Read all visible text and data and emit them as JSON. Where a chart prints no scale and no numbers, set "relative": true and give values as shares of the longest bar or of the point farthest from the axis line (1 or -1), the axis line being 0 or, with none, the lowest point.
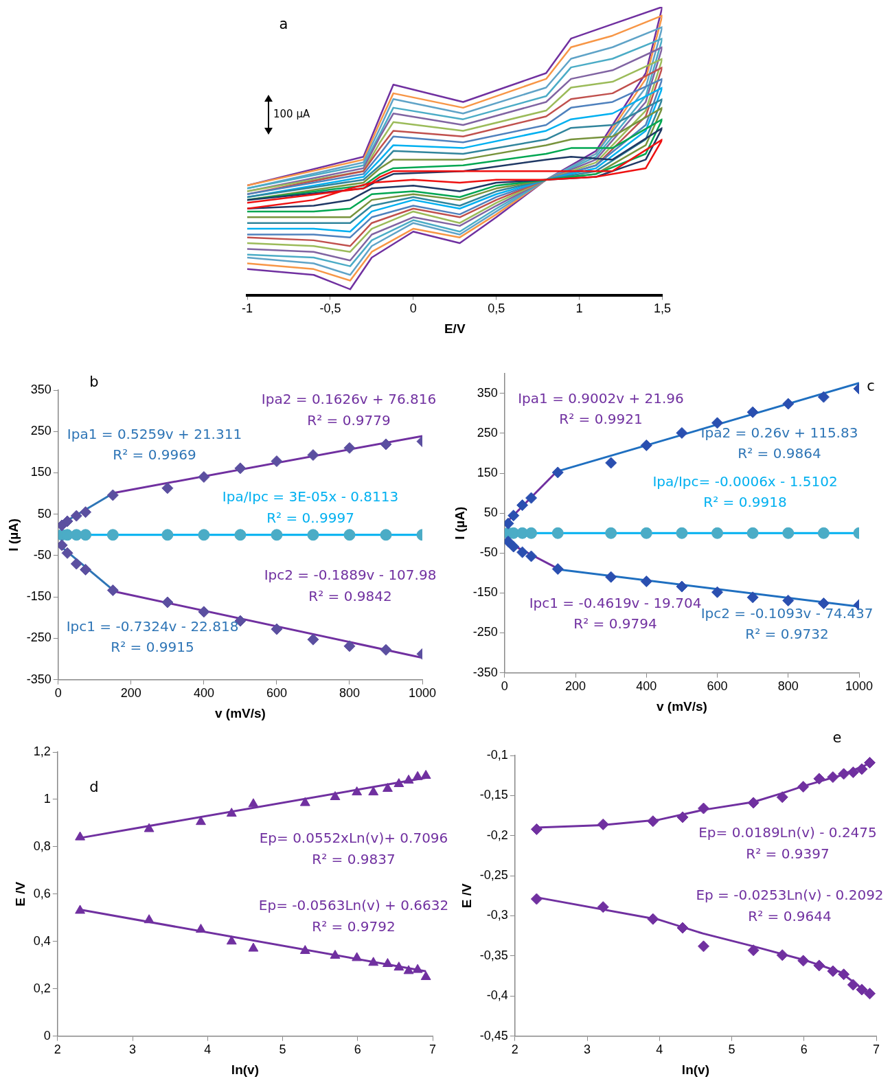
{
  "chart_data": [
    {
      "type": "line",
      "title": "a",
      "xlabel": "E/V",
      "relative": true,
      "tick_labels": "x",
      "legend": false,
      "grid": false,
      "marker": "none",
      "line_style": "solid",
      "annotations": [
        "100 µA"
      ],
      "xlim": [
        -1,
        1.5
      ],
      "xticks": [
        -1,
        {
          "value": -0.5,
          "label": "-0,5"
        },
        0,
        {
          "value": 0.5,
          "label": "0,5"
        },
        1,
        {
          "value": 1.5,
          "label": "1,5"
        }
      ],
      "x": [
        -1,
        -0.3,
        -0.2,
        -0.12,
        0.3,
        0.8,
        0.95,
        1.2,
        1.5,
        1.4,
        1.1,
        0.8,
        0.5,
        0.28,
        0,
        -0.25,
        -0.38,
        -0.6,
        -1
      ],
      "series": [
        {
          "color": "#ee1111",
          "values": [
            0.32,
            0.37,
            0.41,
            0.43,
            0.43,
            0.43,
            0.43,
            0.43,
            0.54,
            0.44,
            0.41,
            0.4,
            0.4,
            0.39,
            0.4,
            0.39,
            0.37,
            0.33,
            0.3
          ]
        },
        {
          "color": "#1f3864",
          "values": [
            0.33,
            0.37,
            0.4,
            0.42,
            0.43,
            0.47,
            0.48,
            0.47,
            0.58,
            0.47,
            0.41,
            0.4,
            0.39,
            0.36,
            0.38,
            0.37,
            0.33,
            0.31,
            0.3
          ]
        },
        {
          "color": "#00a651",
          "values": [
            0.33,
            0.38,
            0.42,
            0.44,
            0.45,
            0.49,
            0.51,
            0.51,
            0.61,
            0.49,
            0.42,
            0.4,
            0.38,
            0.34,
            0.36,
            0.35,
            0.3,
            0.29,
            0.29
          ]
        },
        {
          "color": "#77933c",
          "values": [
            0.33,
            0.39,
            0.44,
            0.47,
            0.47,
            0.52,
            0.54,
            0.55,
            0.65,
            0.52,
            0.42,
            0.4,
            0.37,
            0.33,
            0.35,
            0.33,
            0.27,
            0.27,
            0.27
          ]
        },
        {
          "color": "#31859c",
          "values": [
            0.34,
            0.4,
            0.45,
            0.5,
            0.49,
            0.54,
            0.58,
            0.59,
            0.68,
            0.54,
            0.43,
            0.4,
            0.36,
            0.31,
            0.34,
            0.31,
            0.25,
            0.25,
            0.25
          ]
        },
        {
          "color": "#00b0f0",
          "values": [
            0.34,
            0.41,
            0.47,
            0.52,
            0.51,
            0.57,
            0.61,
            0.63,
            0.72,
            0.57,
            0.44,
            0.4,
            0.35,
            0.3,
            0.33,
            0.29,
            0.22,
            0.23,
            0.23
          ]
        },
        {
          "color": "#4f81bd",
          "values": [
            0.35,
            0.42,
            0.49,
            0.55,
            0.53,
            0.59,
            0.65,
            0.67,
            0.75,
            0.59,
            0.45,
            0.4,
            0.34,
            0.28,
            0.31,
            0.27,
            0.2,
            0.21,
            0.21
          ]
        },
        {
          "color": "#c0504d",
          "values": [
            0.35,
            0.43,
            0.51,
            0.57,
            0.55,
            0.62,
            0.68,
            0.7,
            0.79,
            0.62,
            0.45,
            0.4,
            0.33,
            0.27,
            0.3,
            0.25,
            0.17,
            0.19,
            0.2
          ]
        },
        {
          "color": "#9bbb59",
          "values": [
            0.36,
            0.43,
            0.53,
            0.6,
            0.57,
            0.64,
            0.72,
            0.74,
            0.82,
            0.64,
            0.46,
            0.4,
            0.32,
            0.25,
            0.29,
            0.23,
            0.15,
            0.17,
            0.18
          ]
        },
        {
          "color": "#8064a2",
          "values": [
            0.36,
            0.44,
            0.55,
            0.63,
            0.59,
            0.67,
            0.75,
            0.78,
            0.86,
            0.67,
            0.47,
            0.4,
            0.31,
            0.24,
            0.27,
            0.21,
            0.12,
            0.15,
            0.16
          ]
        },
        {
          "color": "#4bacc6",
          "values": [
            0.37,
            0.45,
            0.56,
            0.65,
            0.61,
            0.69,
            0.79,
            0.82,
            0.89,
            0.69,
            0.48,
            0.4,
            0.3,
            0.22,
            0.26,
            0.19,
            0.1,
            0.13,
            0.14
          ]
        },
        {
          "color": "#5fa3c7",
          "values": [
            0.37,
            0.46,
            0.58,
            0.68,
            0.63,
            0.72,
            0.82,
            0.86,
            0.93,
            0.72,
            0.49,
            0.4,
            0.29,
            0.21,
            0.25,
            0.17,
            0.07,
            0.11,
            0.13
          ]
        },
        {
          "color": "#f79646",
          "values": [
            0.38,
            0.47,
            0.6,
            0.7,
            0.65,
            0.75,
            0.86,
            0.9,
            0.97,
            0.75,
            0.49,
            0.4,
            0.28,
            0.2,
            0.23,
            0.15,
            0.05,
            0.09,
            0.11
          ]
        },
        {
          "color": "#7030a0",
          "values": [
            0.38,
            0.48,
            0.62,
            0.73,
            0.67,
            0.77,
            0.89,
            0.94,
            1,
            0.77,
            0.5,
            0.4,
            0.27,
            0.18,
            0.22,
            0.13,
            0.02,
            0.07,
            0.09
          ]
        }
      ]
    },
    {
      "type": "scatter",
      "title": "b",
      "xlabel": "v (mV/s)",
      "ylabel": "I (µA)",
      "legend": false,
      "grid": false,
      "annotations": [
        "Ipa2 = 0.1626v + 76.816",
        "R² = 0.9779",
        "Ipa1 = 0.5259v + 21.311",
        "R² = 0.9969",
        "Ipa/Ipc = 3E-05x - 0.8113",
        "R² = 0..9997",
        "Ipc2 = -0.1889v - 107.98",
        "R² = 0.9842",
        "Ipc1 = -0.7324v - 22.818",
        "R² = 0.9915"
      ],
      "xlim": [
        0,
        1000
      ],
      "xticks": [
        0,
        200,
        400,
        600,
        800,
        1000
      ],
      "ylim": [
        -350,
        350
      ],
      "yticks": [
        -350,
        -250,
        -150,
        -50,
        50,
        150,
        250,
        350
      ],
      "x": [
        10,
        25,
        50,
        75,
        150,
        300,
        400,
        500,
        600,
        700,
        800,
        900,
        1000
      ],
      "series": [
        {
          "type": "line",
          "color": "#2e75b6",
          "marker": "none",
          "x": [
            10,
            150
          ],
          "values": [
            27,
            100
          ]
        },
        {
          "type": "line",
          "color": "#7030a0",
          "marker": "none",
          "x": [
            150,
            1000
          ],
          "values": [
            101,
            239
          ]
        },
        {
          "type": "line",
          "color": "#2e75b6",
          "marker": "none",
          "x": [
            10,
            150
          ],
          "values": [
            -30,
            -133
          ]
        },
        {
          "type": "line",
          "color": "#7030a0",
          "marker": "none",
          "x": [
            150,
            1000
          ],
          "values": [
            -136,
            -297
          ]
        },
        {
          "type": "line",
          "color": "#00b0f0",
          "marker": "none",
          "x": [
            10,
            1000
          ],
          "values": [
            0,
            0
          ]
        },
        {
          "color": "#5b4fa0",
          "marker": "diamond",
          "values": [
            23,
            33,
            46,
            55,
            96,
            113,
            140,
            161,
            178,
            193,
            210,
            219,
            226
          ]
        },
        {
          "color": "#5b4fa0",
          "marker": "diamond",
          "values": [
            -25,
            -44,
            -70,
            -84,
            -134,
            -163,
            -186,
            -208,
            -228,
            -253,
            -269,
            -278,
            -288
          ]
        },
        {
          "color": "#4bacc6",
          "marker": "circle",
          "values": [
            0,
            0,
            0,
            0,
            0,
            0,
            0,
            0,
            0,
            0,
            0,
            0,
            0
          ]
        }
      ]
    },
    {
      "type": "scatter",
      "title": "c",
      "xlabel": "v (mV/s)",
      "ylabel": "I (µA)",
      "legend": false,
      "grid": false,
      "annotations": [
        "Ipa1 = 0.9002v + 21.96",
        "R² = 0.9921",
        "Ipa2 = 0.26v + 115.83",
        "R² = 0.9864",
        "Ipa/Ipc= -0.0006x - 1.5102",
        "R² = 0.9918",
        "Ipc1 = -0.4619v - 19.704",
        "R² = 0.9794",
        "Ipc2 = -0.1093v - 74.437",
        "R² = 0.9732"
      ],
      "xlim": [
        0,
        1000
      ],
      "xticks": [
        0,
        200,
        400,
        600,
        800,
        1000
      ],
      "ylim": [
        -350,
        400
      ],
      "yticks": [
        -350,
        -250,
        -150,
        -50,
        50,
        150,
        250,
        350
      ],
      "x": [
        10,
        25,
        50,
        75,
        150,
        300,
        400,
        500,
        600,
        700,
        800,
        900,
        1000
      ],
      "series": [
        {
          "type": "line",
          "color": "#7030a0",
          "marker": "none",
          "x": [
            10,
            150
          ],
          "values": [
            31,
            157
          ]
        },
        {
          "type": "line",
          "color": "#1f6fc0",
          "marker": "none",
          "x": [
            150,
            1000
          ],
          "values": [
            155,
            376
          ]
        },
        {
          "type": "line",
          "color": "#7030a0",
          "marker": "none",
          "x": [
            10,
            150
          ],
          "values": [
            -24,
            -89
          ]
        },
        {
          "type": "line",
          "color": "#1f6fc0",
          "marker": "none",
          "x": [
            150,
            1000
          ],
          "values": [
            -91,
            -184
          ]
        },
        {
          "type": "line",
          "color": "#00b0f0",
          "marker": "none",
          "x": [
            10,
            1000
          ],
          "values": [
            0,
            0
          ]
        },
        {
          "color": "#2a4fb0",
          "marker": "diamond",
          "values": [
            24,
            44,
            70,
            88,
            152,
            176,
            220,
            251,
            276,
            303,
            324,
            341,
            362
          ]
        },
        {
          "color": "#2a4fb0",
          "marker": "diamond",
          "values": [
            -21,
            -34,
            -48,
            -58,
            -90,
            -110,
            -121,
            -134,
            -148,
            -161,
            -169,
            -176,
            -180
          ]
        },
        {
          "color": "#4bacc6",
          "marker": "circle",
          "values": [
            0,
            0,
            0,
            0,
            0,
            0,
            0,
            0,
            0,
            0,
            0,
            0,
            0
          ]
        }
      ]
    },
    {
      "type": "scatter",
      "title": "d",
      "xlabel": "ln(v)",
      "ylabel": "E /V",
      "legend": false,
      "grid": false,
      "annotations": [
        "Ep= 0.0552xLn(v)+ 0.7096",
        "R² = 0.9837",
        "Ep= -0.0563Ln(v) + 0.6632",
        "R² = 0.9792"
      ],
      "xlim": [
        2,
        7
      ],
      "xticks": [
        2,
        3,
        4,
        5,
        6,
        7
      ],
      "ylim": [
        0,
        1.2
      ],
      "yticks": [
        0,
        {
          "value": 0.2,
          "label": "0,2"
        },
        {
          "value": 0.4,
          "label": "0,4"
        },
        {
          "value": 0.6,
          "label": "0,6"
        },
        {
          "value": 0.8,
          "label": "0,8"
        },
        1,
        {
          "value": 1.2,
          "label": "1,2"
        }
      ],
      "x": [
        2.3,
        3.22,
        3.91,
        4.32,
        4.61,
        5.3,
        5.7,
        5.99,
        6.21,
        6.4,
        6.55,
        6.68,
        6.8,
        6.91
      ],
      "series": [
        {
          "type": "line",
          "color": "#7030a0",
          "marker": "none",
          "x": [
            2.3,
            6.91
          ],
          "values": [
            0.837,
            1.091
          ]
        },
        {
          "type": "line",
          "color": "#7030a0",
          "marker": "none",
          "x": [
            2.3,
            6.91
          ],
          "values": [
            0.534,
            0.274
          ]
        },
        {
          "color": "#7030a0",
          "marker": "triangle",
          "values": [
            0.84,
            0.875,
            0.905,
            0.94,
            0.98,
            0.985,
            1.01,
            1.03,
            1.03,
            1.045,
            1.065,
            1.08,
            1.095,
            1.1
          ]
        },
        {
          "color": "#7030a0",
          "marker": "triangle",
          "values": [
            0.53,
            0.49,
            0.45,
            0.4,
            0.37,
            0.36,
            0.34,
            0.33,
            0.31,
            0.305,
            0.29,
            0.275,
            0.28,
            0.25
          ]
        }
      ]
    },
    {
      "type": "scatter",
      "title": "e",
      "xlabel": "ln(v)",
      "ylabel": "E /V",
      "legend": false,
      "grid": false,
      "annotations": [
        "Ep= 0.0189Ln(v) - 0.2475",
        "R² = 0.9397",
        "Ep = -0.0253Ln(v) - 0.2092",
        "R² = 0.9644"
      ],
      "xlim": [
        2,
        7
      ],
      "xticks": [
        2,
        3,
        4,
        5,
        6,
        7
      ],
      "ylim": [
        -0.45,
        -0.1
      ],
      "yticks": [
        {
          "value": -0.45,
          "label": "-0,45"
        },
        {
          "value": -0.4,
          "label": "-0,4"
        },
        {
          "value": -0.35,
          "label": "-0,35"
        },
        {
          "value": -0.3,
          "label": "-0,3"
        },
        {
          "value": -0.25,
          "label": "-0,25"
        },
        {
          "value": -0.2,
          "label": "-0,2"
        },
        {
          "value": -0.15,
          "label": "-0,15"
        },
        {
          "value": -0.1,
          "label": "-0,1"
        }
      ],
      "x": [
        2.3,
        3.22,
        3.91,
        4.32,
        4.61,
        5.3,
        5.7,
        5.99,
        6.21,
        6.4,
        6.55,
        6.68,
        6.8,
        6.91
      ],
      "series": [
        {
          "type": "line",
          "color": "#7030a0",
          "marker": "none",
          "x": [
            2.3,
            3.2,
            4,
            4.6,
            5.3,
            5.7,
            6,
            6.5,
            6.91
          ],
          "values": [
            -0.19,
            -0.187,
            -0.18,
            -0.168,
            -0.158,
            -0.147,
            -0.138,
            -0.125,
            -0.11
          ]
        },
        {
          "type": "line",
          "color": "#7030a0",
          "marker": "none",
          "x": [
            2.3,
            4,
            4.6,
            5.3,
            6,
            6.5,
            6.91
          ],
          "values": [
            -0.277,
            -0.305,
            -0.322,
            -0.338,
            -0.355,
            -0.37,
            -0.398
          ]
        },
        {
          "color": "#7030a0",
          "marker": "diamond",
          "values": [
            -0.192,
            -0.186,
            -0.182,
            -0.177,
            -0.166,
            -0.159,
            -0.152,
            -0.139,
            -0.129,
            -0.127,
            -0.123,
            -0.121,
            -0.117,
            -0.109
          ]
        },
        {
          "color": "#7030a0",
          "marker": "diamond",
          "values": [
            -0.279,
            -0.289,
            -0.304,
            -0.315,
            -0.338,
            -0.343,
            -0.349,
            -0.356,
            -0.362,
            -0.369,
            -0.373,
            -0.386,
            -0.392,
            -0.397
          ]
        }
      ]
    }
  ]
}
